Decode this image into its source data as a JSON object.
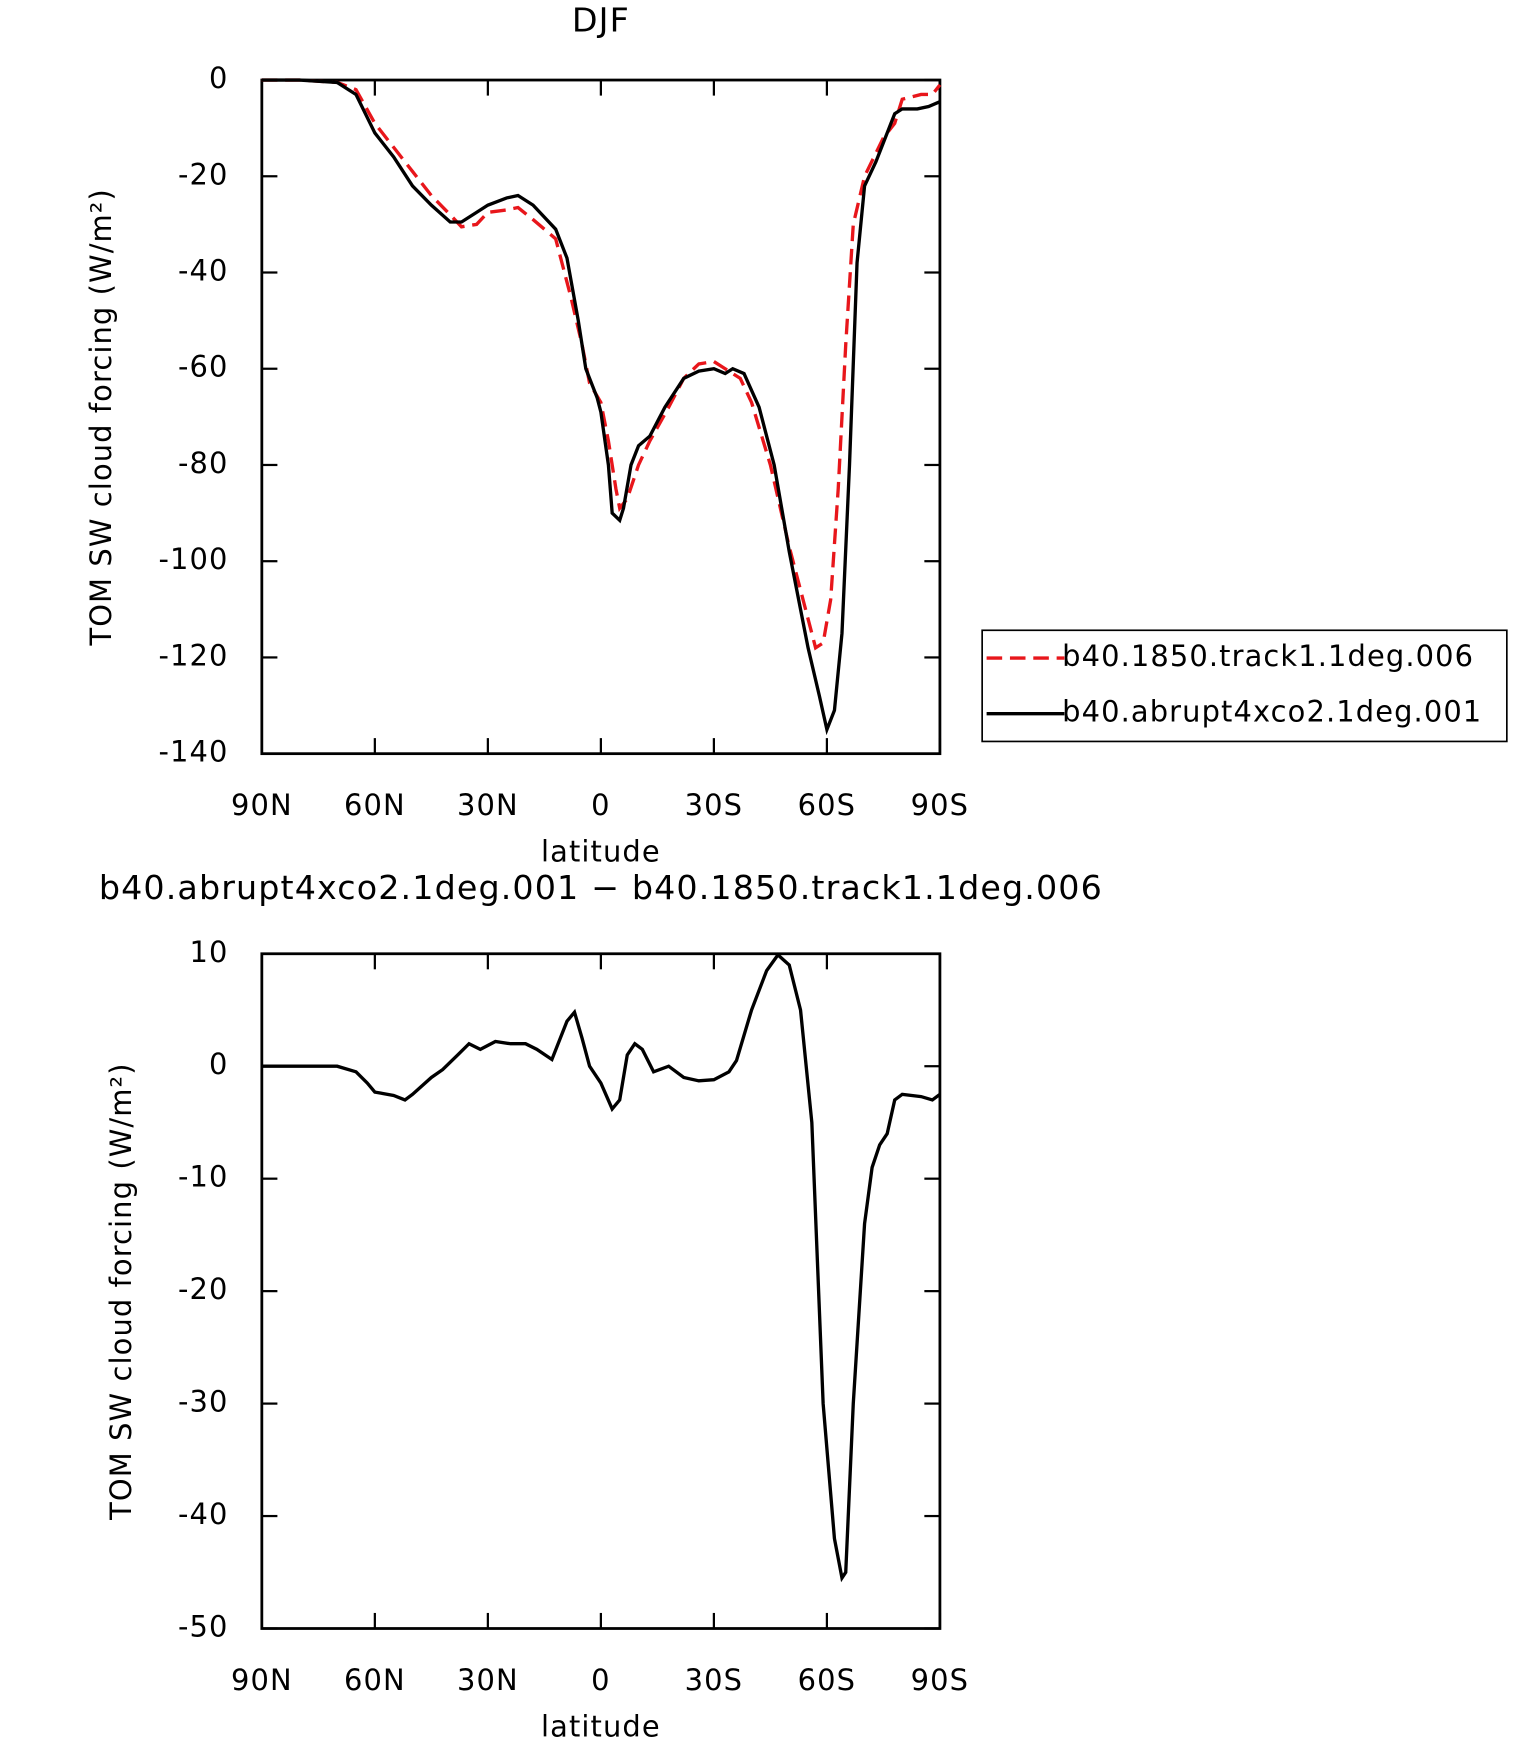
{
  "chart_data": [
    {
      "type": "line",
      "title": "DJF",
      "xlabel": "latitude",
      "ylabel": "TOM SW cloud forcing (W/m²)",
      "xlim": [
        90,
        -90
      ],
      "xticks": [
        {
          "value": 90,
          "label": "90N"
        },
        {
          "value": 60,
          "label": "60N"
        },
        {
          "value": 30,
          "label": "30N"
        },
        0,
        {
          "value": -30,
          "label": "30S"
        },
        {
          "value": -60,
          "label": "60S"
        },
        {
          "value": -90,
          "label": "90S"
        }
      ],
      "ylim": [
        -140,
        0
      ],
      "yticks": [
        -140,
        -120,
        -100,
        -80,
        -60,
        -40,
        -20,
        0
      ],
      "legend": "right",
      "series": [
        {
          "name": "b40.1850.track1.1deg.006",
          "color": "#e8161b",
          "dash": true,
          "x": [
            90,
            80,
            70,
            65,
            60,
            55,
            50,
            45,
            40,
            37,
            33,
            30,
            25,
            22,
            18,
            12,
            8,
            5,
            3,
            0,
            -2,
            -4,
            -5,
            -7,
            -10,
            -13,
            -18,
            -22,
            -26,
            -30,
            -33,
            -37,
            -40,
            -45,
            -50,
            -55,
            -57,
            -59,
            -61,
            -63,
            -65,
            -67,
            -70,
            -75,
            -78,
            -80,
            -85,
            -88,
            -90
          ],
          "values": [
            0,
            0,
            -0.5,
            -2,
            -9,
            -14,
            -19,
            -24,
            -28,
            -30.5,
            -30,
            -27.5,
            -27,
            -26.5,
            -29,
            -33,
            -45,
            -55,
            -63,
            -67,
            -75,
            -85,
            -89,
            -87,
            -80,
            -75,
            -68,
            -62,
            -59,
            -58.5,
            -60,
            -62,
            -67,
            -80,
            -97,
            -112,
            -118,
            -117,
            -108,
            -85,
            -55,
            -30,
            -20,
            -12,
            -9,
            -4,
            -3,
            -3,
            -1
          ]
        },
        {
          "name": "b40.abrupt4xco2.1deg.001",
          "color": "#000000",
          "dash": false,
          "x": [
            90,
            80,
            70,
            65,
            60,
            55,
            50,
            45,
            40,
            37,
            33,
            30,
            25,
            22,
            18,
            12,
            9,
            6,
            4,
            1,
            0,
            -2,
            -3,
            -5,
            -6,
            -8,
            -10,
            -13,
            -17,
            -22,
            -26,
            -30,
            -33,
            -35,
            -38,
            -42,
            -46,
            -50,
            -55,
            -58,
            -60,
            -62,
            -64,
            -66,
            -68,
            -70,
            -73,
            -75,
            -78,
            -80,
            -84,
            -87,
            -90
          ],
          "values": [
            0,
            0,
            -0.5,
            -3,
            -11,
            -16,
            -22,
            -26,
            -29.5,
            -29.5,
            -27.5,
            -26,
            -24.5,
            -24,
            -26,
            -31,
            -37,
            -50,
            -60,
            -66,
            -69,
            -80,
            -90,
            -91.5,
            -89,
            -80,
            -76,
            -74,
            -68,
            -62,
            -60.5,
            -60,
            -61,
            -60,
            -61,
            -68,
            -80,
            -98,
            -118,
            -128,
            -135,
            -131,
            -115,
            -80,
            -38,
            -22,
            -17,
            -13,
            -7,
            -6,
            -6,
            -5.5,
            -4.5
          ]
        }
      ]
    },
    {
      "type": "line",
      "title": "b40.abrupt4xco2.1deg.001 − b40.1850.track1.1deg.006",
      "xlabel": "latitude",
      "ylabel": "TOM SW cloud forcing (W/m²)",
      "xlim": [
        90,
        -90
      ],
      "xticks": [
        {
          "value": 90,
          "label": "90N"
        },
        {
          "value": 60,
          "label": "60N"
        },
        {
          "value": 30,
          "label": "30N"
        },
        0,
        {
          "value": -30,
          "label": "30S"
        },
        {
          "value": -60,
          "label": "60S"
        },
        {
          "value": -90,
          "label": "90S"
        }
      ],
      "ylim": [
        -50,
        10
      ],
      "yticks": [
        -50,
        -40,
        -30,
        -20,
        -10,
        0,
        10
      ],
      "series": [
        {
          "color": "#000000",
          "dash": false,
          "x": [
            90,
            70,
            65,
            62,
            60,
            55,
            52,
            50,
            45,
            42,
            38,
            35,
            32,
            28,
            24,
            20,
            17,
            13,
            9,
            7,
            5,
            3,
            0,
            -3,
            -5,
            -7,
            -9,
            -11,
            -14,
            -18,
            -22,
            -26,
            -30,
            -34,
            -36,
            -40,
            -44,
            -47,
            -50,
            -53,
            -56,
            -59,
            -62,
            -64,
            -65,
            -67,
            -70,
            -72,
            -74,
            -76,
            -78,
            -80,
            -85,
            -88,
            -90
          ],
          "values": [
            0,
            0,
            -0.5,
            -1.5,
            -2.3,
            -2.6,
            -3,
            -2.5,
            -1,
            -0.3,
            1,
            2,
            1.5,
            2.2,
            2,
            2,
            1.5,
            0.6,
            4,
            4.8,
            2.5,
            0,
            -1.5,
            -3.8,
            -3,
            1,
            2,
            1.5,
            -0.5,
            0,
            -1,
            -1.3,
            -1.2,
            -0.5,
            0.5,
            5,
            8.5,
            9.9,
            9,
            5,
            -5,
            -30,
            -42,
            -45.5,
            -45,
            -30,
            -14,
            -9,
            -7,
            -6,
            -3,
            -2.5,
            -2.7,
            -3,
            -2.5
          ]
        }
      ]
    }
  ]
}
